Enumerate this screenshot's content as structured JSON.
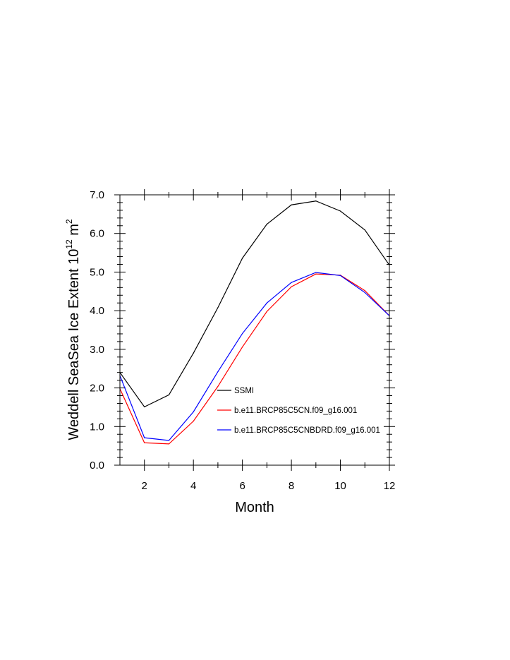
{
  "chart_data": {
    "type": "line",
    "xlabel": "Month",
    "ylabel": {
      "prefix": "Weddell SeaSea Ice Extent 10",
      "exponent": "12",
      "unit": " m",
      "unit_exponent": "2"
    },
    "xlim": [
      1,
      12
    ],
    "ylim": [
      0,
      7
    ],
    "xticks": [
      2,
      4,
      6,
      8,
      10,
      12
    ],
    "xtick_labels": [
      "2",
      "4",
      "6",
      "8",
      "10",
      "12"
    ],
    "yticks": [
      0,
      1,
      2,
      3,
      4,
      5,
      6,
      7
    ],
    "ytick_labels": [
      "0.0",
      "1.0",
      "2.0",
      "3.0",
      "4.0",
      "5.0",
      "6.0",
      "7.0"
    ],
    "legend_position": "lower-right, inside plot",
    "grid": false,
    "x": [
      1,
      2,
      3,
      4,
      5,
      6,
      7,
      8,
      9,
      10,
      11,
      12
    ],
    "series": [
      {
        "name": "SSMI",
        "color": "#000000",
        "values": [
          2.4,
          1.51,
          1.82,
          2.9,
          4.08,
          5.36,
          6.24,
          6.74,
          6.84,
          6.58,
          6.09,
          5.18
        ]
      },
      {
        "name": "b.e11.BRCP85C5CN.f09_g16.001",
        "color": "#ff0000",
        "values": [
          1.98,
          0.58,
          0.55,
          1.14,
          2.04,
          3.06,
          3.98,
          4.62,
          4.95,
          4.92,
          4.52,
          3.87
        ]
      },
      {
        "name": "b.e11.BRCP85C5CNBDRD.f09_g16.001",
        "color": "#0000ff",
        "values": [
          2.32,
          0.71,
          0.64,
          1.38,
          2.42,
          3.41,
          4.2,
          4.73,
          4.99,
          4.91,
          4.47,
          3.87
        ]
      }
    ]
  }
}
